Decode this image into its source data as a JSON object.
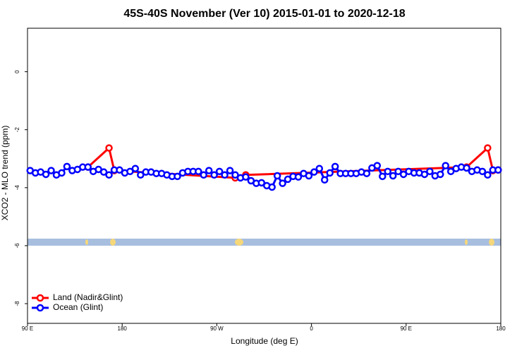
{
  "chart_data": {
    "type": "line",
    "title": "45S-40S November (Ver 10)   2015-01-01 to 2020-12-18",
    "x_label": "Longitude (deg E)",
    "y_label": "XCO2 - MLO trend (ppm)",
    "xlim": [
      90,
      540
    ],
    "xticks": [
      {
        "value": 90,
        "label": "90 E"
      },
      180,
      {
        "value": 270,
        "label": "90 W"
      },
      {
        "value": 360,
        "label": "0"
      },
      {
        "value": 450,
        "label": "90 E"
      },
      {
        "value": 540,
        "label": "180"
      }
    ],
    "ylim": [
      -8.68,
      1.5
    ],
    "yticks": [
      0,
      -2,
      -4,
      -6,
      -8
    ],
    "legend": "bottomleft",
    "series": [
      {
        "name": "Land (Nadir&Glint)",
        "color": "#ff0000",
        "x": [
          147.5,
          167.5,
          172.5,
          287.5,
          297.5,
          507.5,
          527.5,
          532.5,
          537.5
        ],
        "values": [
          -3.29,
          -2.63,
          -3.41,
          -3.66,
          -3.56,
          -3.29,
          -2.63,
          -3.41,
          -3.39
        ]
      },
      {
        "name": "Ocean (Glint)",
        "color": "#0000ff",
        "x": [
          92.5,
          97.5,
          102.5,
          107.5,
          112.5,
          117.5,
          122.5,
          127.5,
          132.5,
          137.5,
          142.5,
          147.5,
          152.5,
          157.5,
          162.5,
          167.5,
          172.5,
          177.5,
          182.5,
          187.5,
          192.5,
          197.5,
          202.5,
          207.5,
          212.5,
          217.5,
          222.5,
          227.5,
          232.5,
          237.5,
          242.5,
          247.5,
          252.5,
          257.5,
          262.5,
          267.5,
          272.5,
          277.5,
          282.5,
          287.5,
          292.5,
          297.5,
          302.5,
          307.5,
          312.5,
          317.5,
          322.5,
          327.5,
          332.5,
          337.5,
          342.5,
          347.5,
          352.5,
          357.5,
          362.5,
          367.5,
          372.5,
          377.5,
          382.5,
          387.5,
          392.5,
          397.5,
          402.5,
          407.5,
          412.5,
          417.5,
          422.5,
          427.5,
          432.5,
          437.5,
          442.5,
          447.5,
          452.5,
          457.5,
          462.5,
          467.5,
          472.5,
          477.5,
          482.5,
          487.5,
          492.5,
          497.5,
          502.5,
          507.5,
          512.5,
          517.5,
          522.5,
          527.5,
          532.5,
          537.5
        ],
        "values": [
          -3.41,
          -3.49,
          -3.46,
          -3.54,
          -3.41,
          -3.56,
          -3.49,
          -3.27,
          -3.41,
          -3.37,
          -3.29,
          -3.29,
          -3.44,
          -3.37,
          -3.46,
          -3.56,
          -3.39,
          -3.39,
          -3.49,
          -3.44,
          -3.34,
          -3.56,
          -3.46,
          -3.46,
          -3.51,
          -3.51,
          -3.56,
          -3.61,
          -3.61,
          -3.49,
          -3.44,
          -3.44,
          -3.44,
          -3.56,
          -3.41,
          -3.56,
          -3.44,
          -3.56,
          -3.41,
          -3.56,
          -3.66,
          -3.63,
          -3.76,
          -3.85,
          -3.83,
          -3.93,
          -3.98,
          -3.59,
          -3.85,
          -3.71,
          -3.61,
          -3.63,
          -3.51,
          -3.59,
          -3.46,
          -3.34,
          -3.73,
          -3.49,
          -3.27,
          -3.51,
          -3.51,
          -3.51,
          -3.51,
          -3.46,
          -3.51,
          -3.32,
          -3.24,
          -3.61,
          -3.44,
          -3.59,
          -3.44,
          -3.54,
          -3.44,
          -3.49,
          -3.49,
          -3.54,
          -3.44,
          -3.59,
          -3.54,
          -3.24,
          -3.44,
          -3.34,
          -3.29,
          -3.32,
          -3.44,
          -3.39,
          -3.44,
          -3.56,
          -3.39,
          -3.39
        ]
      }
    ]
  }
}
